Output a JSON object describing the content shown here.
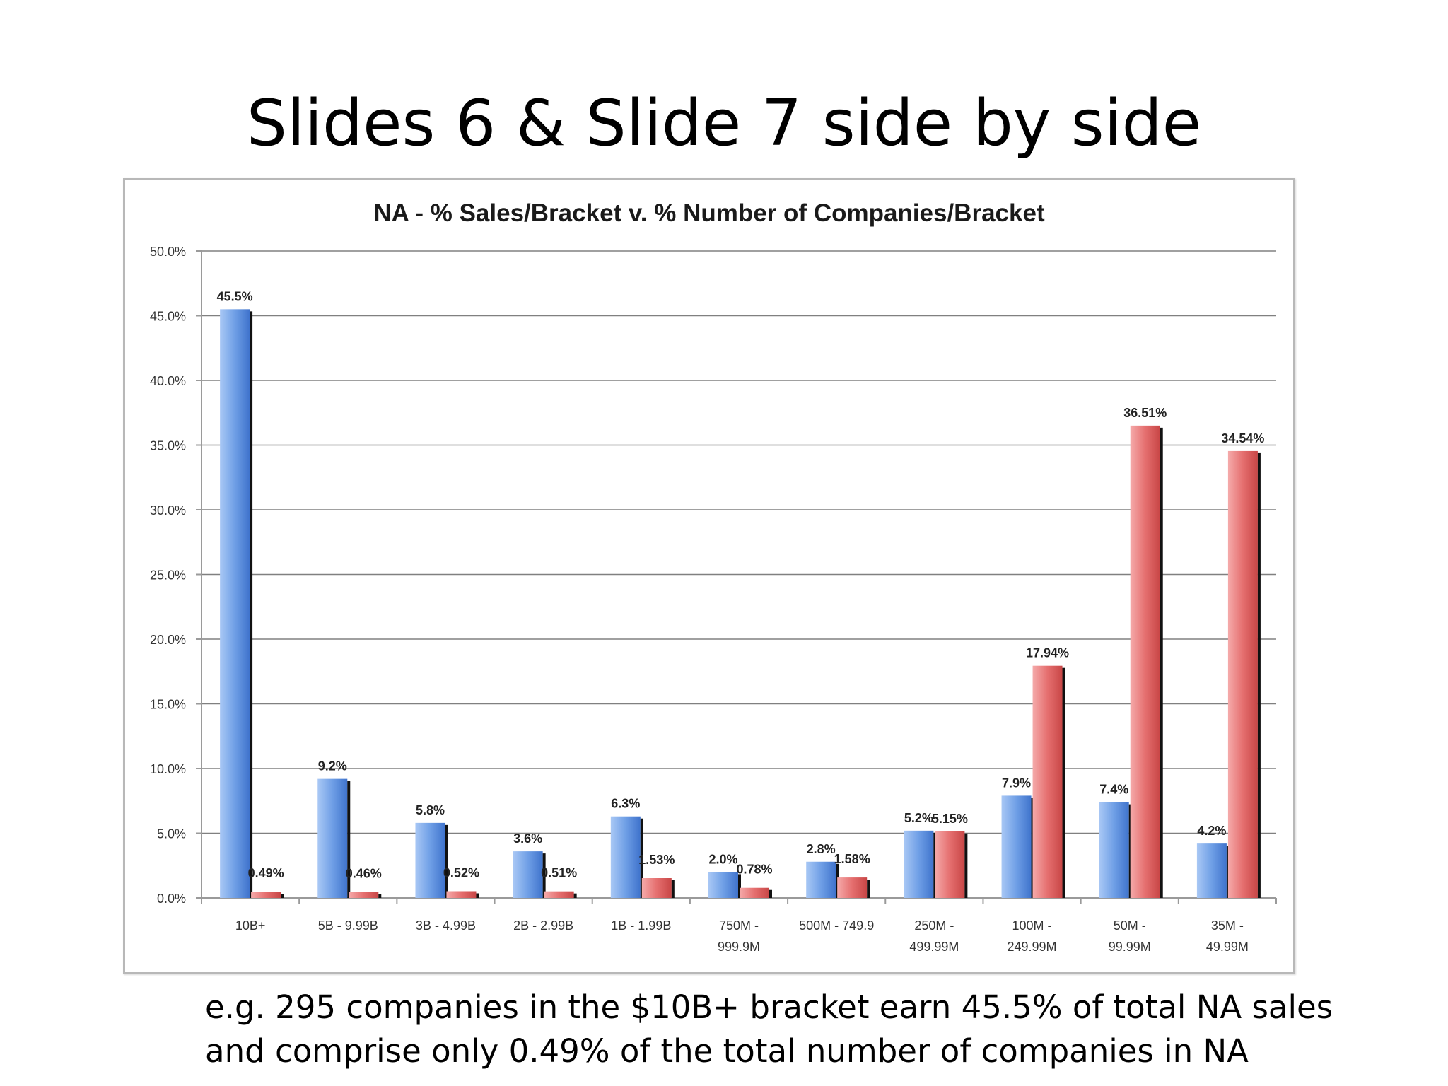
{
  "slide": {
    "title": "Slides 6 & Slide 7 side by side",
    "note_line1": "e.g. 295 companies in the $10B+ bracket earn 45.5% of total NA sales",
    "note_line2": "and comprise only 0.49% of the total number of companies in NA"
  },
  "colors": {
    "sales_series": "#5b8fe0",
    "companies_series": "#e06565",
    "gridline": "#808080"
  },
  "chart_data": {
    "type": "bar",
    "title": "NA - % Sales/Bracket v. % Number of Companies/Bracket",
    "xlabel": "",
    "ylabel": "",
    "ylim": [
      0,
      50
    ],
    "yticks": [
      "0.0%",
      "5.0%",
      "10.0%",
      "15.0%",
      "20.0%",
      "25.0%",
      "30.0%",
      "35.0%",
      "40.0%",
      "45.0%",
      "50.0%"
    ],
    "grid": true,
    "categories": [
      [
        "10B+"
      ],
      [
        "5B  - 9.99B"
      ],
      [
        "3B - 4.99B"
      ],
      [
        "2B - 2.99B"
      ],
      [
        "1B - 1.99B"
      ],
      [
        "750M -",
        "999.9M"
      ],
      [
        "500M - 749.9"
      ],
      [
        "250M -",
        "499.99M"
      ],
      [
        "100M -",
        "249.99M"
      ],
      [
        "50M -",
        "99.99M"
      ],
      [
        "35M -",
        "49.99M"
      ]
    ],
    "series": [
      {
        "values": [
          45.5,
          9.2,
          5.8,
          3.6,
          6.3,
          2.0,
          2.8,
          5.2,
          7.9,
          7.4,
          4.2
        ],
        "labels": [
          "45.5%",
          "9.2%",
          "5.8%",
          "3.6%",
          "6.3%",
          "2.0%",
          "2.8%",
          "5.2%",
          "7.9%",
          "7.4%",
          "4.2%"
        ]
      },
      {
        "values": [
          0.49,
          0.46,
          0.52,
          0.51,
          1.53,
          0.78,
          1.58,
          5.15,
          17.94,
          36.51,
          34.54
        ],
        "labels": [
          "0.49%",
          "0.46%",
          "0.52%",
          "0.51%",
          "1.53%",
          "0.78%",
          "1.58%",
          "5.15%",
          "17.94%",
          "36.51%",
          "34.54%"
        ]
      }
    ]
  }
}
